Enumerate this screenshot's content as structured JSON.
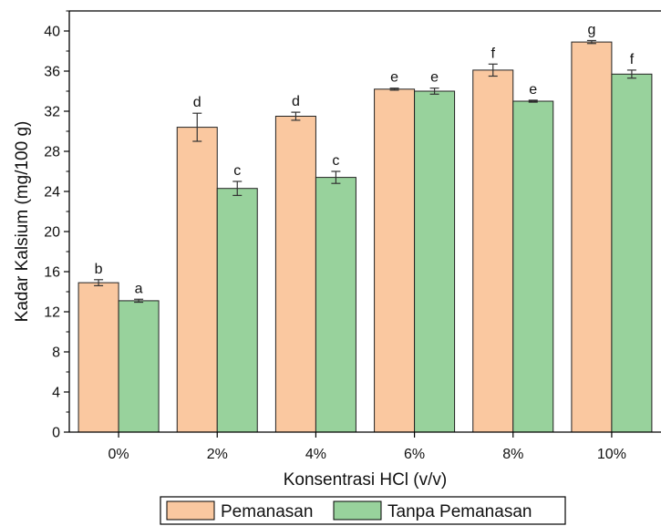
{
  "chart_data": {
    "type": "bar",
    "xlabel": "Konsentrasi HCl (v/v)",
    "ylabel": "Kadar Kalsium (mg/100 g)",
    "ylim": [
      0,
      42
    ],
    "yticks": [
      0,
      4,
      8,
      12,
      16,
      20,
      24,
      28,
      32,
      36,
      40
    ],
    "categories": [
      "0%",
      "2%",
      "4%",
      "6%",
      "8%",
      "10%"
    ],
    "series": [
      {
        "name": "Pemanasan",
        "color": "#fac8a0",
        "values": [
          14.9,
          30.4,
          31.5,
          34.2,
          36.1,
          38.9
        ],
        "errors": [
          0.3,
          1.4,
          0.4,
          0.1,
          0.6,
          0.15
        ],
        "letters": [
          "b",
          "d",
          "d",
          "e",
          "f",
          "g"
        ]
      },
      {
        "name": "Tanpa Pemanasan",
        "color": "#98d29c",
        "values": [
          13.1,
          24.3,
          25.4,
          34.0,
          33.0,
          35.7
        ],
        "errors": [
          0.15,
          0.7,
          0.6,
          0.3,
          0.1,
          0.4
        ],
        "letters": [
          "a",
          "c",
          "c",
          "e",
          "e",
          "f"
        ]
      }
    ],
    "legend_position": "bottom",
    "grid": false
  }
}
